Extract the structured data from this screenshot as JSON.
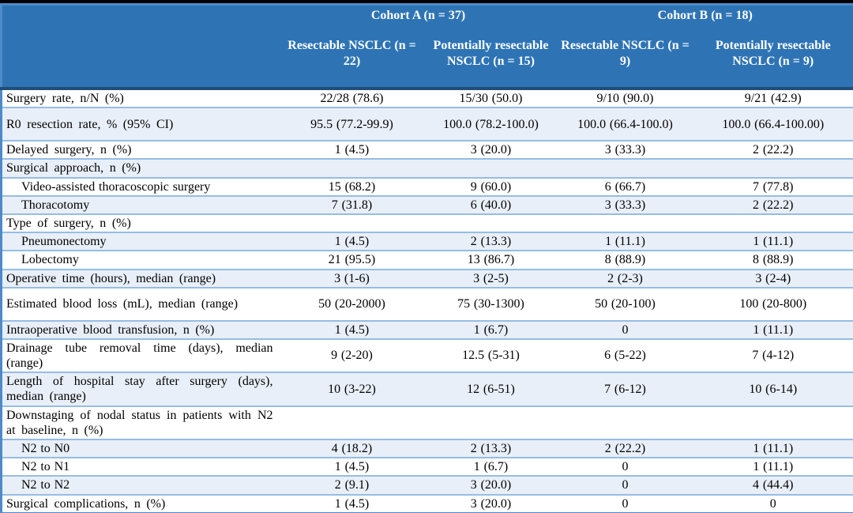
{
  "table": {
    "header": {
      "stub": "",
      "groups": [
        {
          "label": "Cohort A (n = 37)"
        },
        {
          "label": "Cohort B (n = 18)"
        }
      ],
      "columns": [
        "Resectable NSCLC (n = 22)",
        "Potentially resectable NSCLC (n = 15)",
        "Resectable NSCLC (n = 9)",
        "Potentially resectable NSCLC (n = 9)"
      ]
    },
    "rows": [
      {
        "label": "Surgery rate, n/N (%)",
        "indent": false,
        "tall": false,
        "values": [
          "22/28 (78.6)",
          "15/30 (50.0)",
          "9/10 (90.0)",
          "9/21 (42.9)"
        ]
      },
      {
        "label": "R0 resection rate, % (95% CI)",
        "indent": false,
        "tall": true,
        "values": [
          "95.5 (77.2-99.9)",
          "100.0 (78.2-100.0)",
          "100.0 (66.4-100.0)",
          "100.0 (66.4-100.00)"
        ]
      },
      {
        "label": "Delayed surgery, n (%)",
        "indent": false,
        "tall": false,
        "values": [
          "1 (4.5)",
          "3 (20.0)",
          "3 (33.3)",
          "2 (22.2)"
        ]
      },
      {
        "label": "Surgical approach, n (%)",
        "indent": false,
        "tall": false,
        "values": [
          "",
          "",
          "",
          ""
        ]
      },
      {
        "label": "Video-assisted thoracoscopic surgery",
        "indent": true,
        "tall": false,
        "values": [
          "15 (68.2)",
          "9 (60.0)",
          "6 (66.7)",
          "7 (77.8)"
        ]
      },
      {
        "label": "Thoracotomy",
        "indent": true,
        "tall": false,
        "values": [
          "7 (31.8)",
          "6 (40.0)",
          "3 (33.3)",
          "2 (22.2)"
        ]
      },
      {
        "label": "Type of surgery, n (%)",
        "indent": false,
        "tall": false,
        "values": [
          "",
          "",
          "",
          ""
        ]
      },
      {
        "label": "Pneumonectomy",
        "indent": true,
        "tall": false,
        "values": [
          "1 (4.5)",
          "2 (13.3)",
          "1 (11.1)",
          "1 (11.1)"
        ]
      },
      {
        "label": "Lobectomy",
        "indent": true,
        "tall": false,
        "values": [
          "21 (95.5)",
          "13 (86.7)",
          "8 (88.9)",
          "8 (88.9)"
        ]
      },
      {
        "label": "Operative time (hours), median (range)",
        "indent": false,
        "tall": false,
        "values": [
          "3 (1-6)",
          "3 (2-5)",
          "2 (2-3)",
          "3 (2-4)"
        ]
      },
      {
        "label": "Estimated blood loss (mL), median (range)",
        "indent": false,
        "tall": true,
        "values": [
          "50 (20-2000)",
          "75 (30-1300)",
          "50 (20-100)",
          "100 (20-800)"
        ]
      },
      {
        "label": "Intraoperative blood transfusion, n (%)",
        "indent": false,
        "tall": false,
        "values": [
          "1 (4.5)",
          "1 (6.7)",
          "0",
          "1 (11.1)"
        ]
      },
      {
        "label": "Drainage tube removal time (days), median (range)",
        "indent": false,
        "tall": true,
        "values": [
          "9 (2-20)",
          "12.5 (5-31)",
          "6 (5-22)",
          "7 (4-12)"
        ]
      },
      {
        "label": "Length of hospital stay after surgery (days), median (range)",
        "indent": false,
        "tall": true,
        "values": [
          "10 (3-22)",
          "12 (6-51)",
          "7 (6-12)",
          "10 (6-14)"
        ]
      },
      {
        "label": "Downstaging of nodal status in patients with N2 at baseline, n (%)",
        "indent": false,
        "tall": true,
        "values": [
          "",
          "",
          "",
          ""
        ]
      },
      {
        "label": "N2 to N0",
        "indent": true,
        "tall": false,
        "values": [
          "4 (18.2)",
          "2 (13.3)",
          "2 (22.2)",
          "1 (11.1)"
        ]
      },
      {
        "label": "N2 to N1",
        "indent": true,
        "tall": false,
        "values": [
          "1 (4.5)",
          "1 (6.7)",
          "0",
          "1 (11.1)"
        ]
      },
      {
        "label": "N2 to N2",
        "indent": true,
        "tall": false,
        "values": [
          "2 (9.1)",
          "3 (20.0)",
          "0",
          "4 (44.4)"
        ]
      },
      {
        "label": "Surgical complications, n (%)",
        "indent": false,
        "tall": false,
        "values": [
          "1 (4.5)",
          "3 (20.0)",
          "0",
          "0"
        ]
      }
    ]
  },
  "colors": {
    "header_blue": "#2E74B5",
    "outer_border": "#4E8AC8",
    "navy_divider": "#1F4E79",
    "row_border": "#95BDE4",
    "row_shade": "#E9EFF8",
    "page_background": "#000000",
    "header_text": "#FFFFFF",
    "body_text": "#000000"
  }
}
